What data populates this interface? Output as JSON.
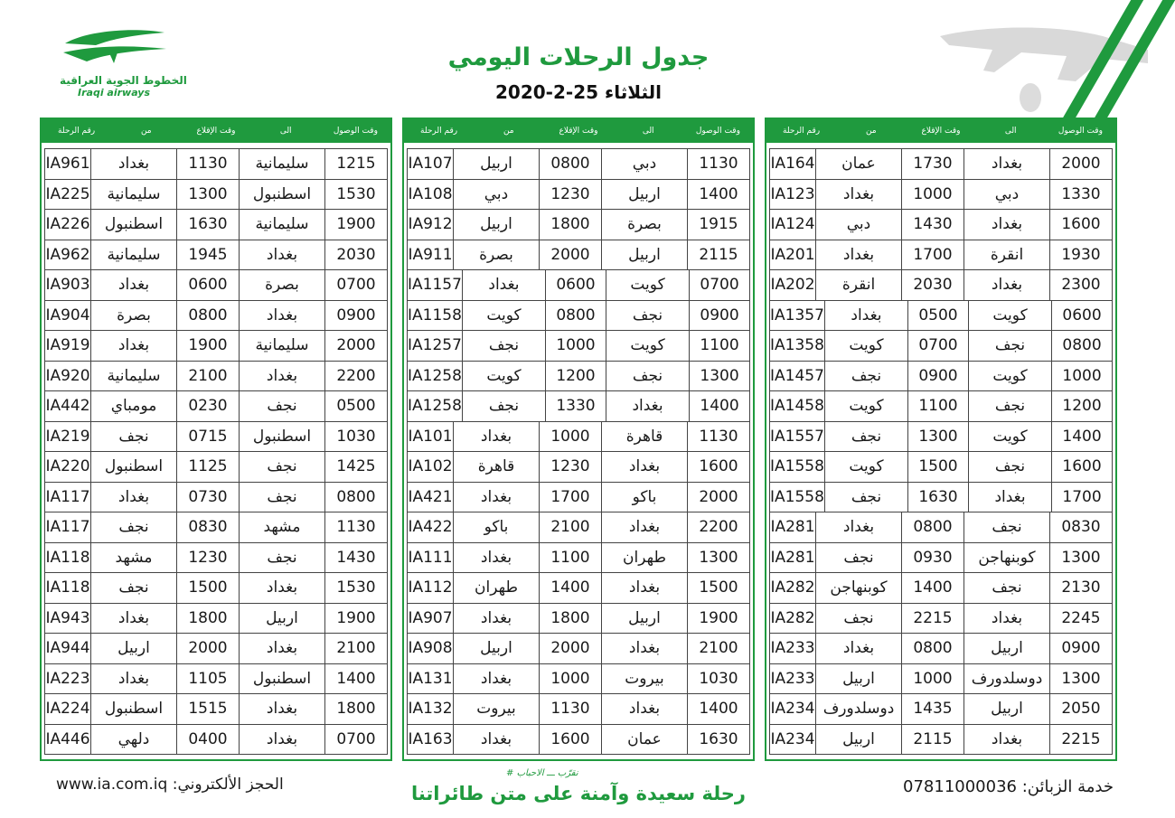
{
  "logo": {
    "arabic": "الخطوط الجوية العراقية",
    "english": "Iraqi airways"
  },
  "title": "جدول الرحلات اليومي",
  "subtitle": "الثلاثاء 25-2-2020",
  "colors": {
    "green": "#1f9a3e"
  },
  "headers": [
    "وقت الوصول",
    "الى",
    "وقت الإقلاع",
    "من",
    "رقم الرحلة"
  ],
  "tables": [
    {
      "rows": [
        [
          "2000",
          "بغداد",
          "1730",
          "عمان",
          "IA164"
        ],
        [
          "1330",
          "دبي",
          "1000",
          "بغداد",
          "IA123"
        ],
        [
          "1600",
          "بغداد",
          "1430",
          "دبي",
          "IA124"
        ],
        [
          "1930",
          "انقرة",
          "1700",
          "بغداد",
          "IA201"
        ],
        [
          "2300",
          "بغداد",
          "2030",
          "انقرة",
          "IA202"
        ],
        [
          "0600",
          "كويت",
          "0500",
          "بغداد",
          "IA1357"
        ],
        [
          "0800",
          "نجف",
          "0700",
          "كويت",
          "IA1358"
        ],
        [
          "1000",
          "كويت",
          "0900",
          "نجف",
          "IA1457"
        ],
        [
          "1200",
          "نجف",
          "1100",
          "كويت",
          "IA1458"
        ],
        [
          "1400",
          "كويت",
          "1300",
          "نجف",
          "IA1557"
        ],
        [
          "1600",
          "نجف",
          "1500",
          "كويت",
          "IA1558"
        ],
        [
          "1700",
          "بغداد",
          "1630",
          "نجف",
          "IA1558"
        ],
        [
          "0830",
          "نجف",
          "0800",
          "بغداد",
          "IA281"
        ],
        [
          "1300",
          "كوبنهاجن",
          "0930",
          "نجف",
          "IA281"
        ],
        [
          "2130",
          "نجف",
          "1400",
          "كوبنهاجن",
          "IA282"
        ],
        [
          "2245",
          "بغداد",
          "2215",
          "نجف",
          "IA282"
        ],
        [
          "0900",
          "اربيل",
          "0800",
          "بغداد",
          "IA233"
        ],
        [
          "1300",
          "دوسلدورف",
          "1000",
          "اربيل",
          "IA233"
        ],
        [
          "2050",
          "اربيل",
          "1435",
          "دوسلدورف",
          "IA234"
        ],
        [
          "2215",
          "بغداد",
          "2115",
          "اربيل",
          "IA234"
        ]
      ]
    },
    {
      "rows": [
        [
          "1130",
          "دبي",
          "0800",
          "اربيل",
          "IA107"
        ],
        [
          "1400",
          "اربيل",
          "1230",
          "دبي",
          "IA108"
        ],
        [
          "1915",
          "بصرة",
          "1800",
          "اربيل",
          "IA912"
        ],
        [
          "2115",
          "اربيل",
          "2000",
          "بصرة",
          "IA911"
        ],
        [
          "0700",
          "كويت",
          "0600",
          "بغداد",
          "IA1157"
        ],
        [
          "0900",
          "نجف",
          "0800",
          "كويت",
          "IA1158"
        ],
        [
          "1100",
          "كويت",
          "1000",
          "نجف",
          "IA1257"
        ],
        [
          "1300",
          "نجف",
          "1200",
          "كويت",
          "IA1258"
        ],
        [
          "1400",
          "بغداد",
          "1330",
          "نجف",
          "IA1258"
        ],
        [
          "1130",
          "قاهرة",
          "1000",
          "بغداد",
          "IA101"
        ],
        [
          "1600",
          "بغداد",
          "1230",
          "قاهرة",
          "IA102"
        ],
        [
          "2000",
          "باكو",
          "1700",
          "بغداد",
          "IA421"
        ],
        [
          "2200",
          "بغداد",
          "2100",
          "باكو",
          "IA422"
        ],
        [
          "1300",
          "طهران",
          "1100",
          "بغداد",
          "IA111"
        ],
        [
          "1500",
          "بغداد",
          "1400",
          "طهران",
          "IA112"
        ],
        [
          "1900",
          "اربيل",
          "1800",
          "بغداد",
          "IA907"
        ],
        [
          "2100",
          "بغداد",
          "2000",
          "اربيل",
          "IA908"
        ],
        [
          "1030",
          "بيروت",
          "1000",
          "بغداد",
          "IA131"
        ],
        [
          "1400",
          "بغداد",
          "1130",
          "بيروت",
          "IA132"
        ],
        [
          "1630",
          "عمان",
          "1600",
          "بغداد",
          "IA163"
        ]
      ]
    },
    {
      "rows": [
        [
          "1215",
          "سليمانية",
          "1130",
          "بغداد",
          "IA961"
        ],
        [
          "1530",
          "اسطنبول",
          "1300",
          "سليمانية",
          "IA225"
        ],
        [
          "1900",
          "سليمانية",
          "1630",
          "اسطنبول",
          "IA226"
        ],
        [
          "2030",
          "بغداد",
          "1945",
          "سليمانية",
          "IA962"
        ],
        [
          "0700",
          "بصرة",
          "0600",
          "بغداد",
          "IA903"
        ],
        [
          "0900",
          "بغداد",
          "0800",
          "بصرة",
          "IA904"
        ],
        [
          "2000",
          "سليمانية",
          "1900",
          "بغداد",
          "IA919"
        ],
        [
          "2200",
          "بغداد",
          "2100",
          "سليمانية",
          "IA920"
        ],
        [
          "0500",
          "نجف",
          "0230",
          "مومباي",
          "IA442"
        ],
        [
          "1030",
          "اسطنبول",
          "0715",
          "نجف",
          "IA219"
        ],
        [
          "1425",
          "نجف",
          "1125",
          "اسطنبول",
          "IA220"
        ],
        [
          "0800",
          "نجف",
          "0730",
          "بغداد",
          "IA117"
        ],
        [
          "1130",
          "مشهد",
          "0830",
          "نجف",
          "IA117"
        ],
        [
          "1430",
          "نجف",
          "1230",
          "مشهد",
          "IA118"
        ],
        [
          "1530",
          "بغداد",
          "1500",
          "نجف",
          "IA118"
        ],
        [
          "1900",
          "اربيل",
          "1800",
          "بغداد",
          "IA943"
        ],
        [
          "2100",
          "بغداد",
          "2000",
          "اربيل",
          "IA944"
        ],
        [
          "1400",
          "اسطنبول",
          "1105",
          "بغداد",
          "IA223"
        ],
        [
          "1800",
          "بغداد",
          "1515",
          "اسطنبول",
          "IA224"
        ],
        [
          "0700",
          "بغداد",
          "0400",
          "دلهي",
          "IA446"
        ]
      ]
    }
  ],
  "footer": {
    "customer_service": "خدمة الزبائن: 07811000036",
    "slogan_small": "# نقرّب ـــ الاحباب",
    "slogan": "رحلة سعيدة وآمنة على متن طائراتنا",
    "booking": "الحجز الألكتروني:  www.ia.com.iq"
  }
}
